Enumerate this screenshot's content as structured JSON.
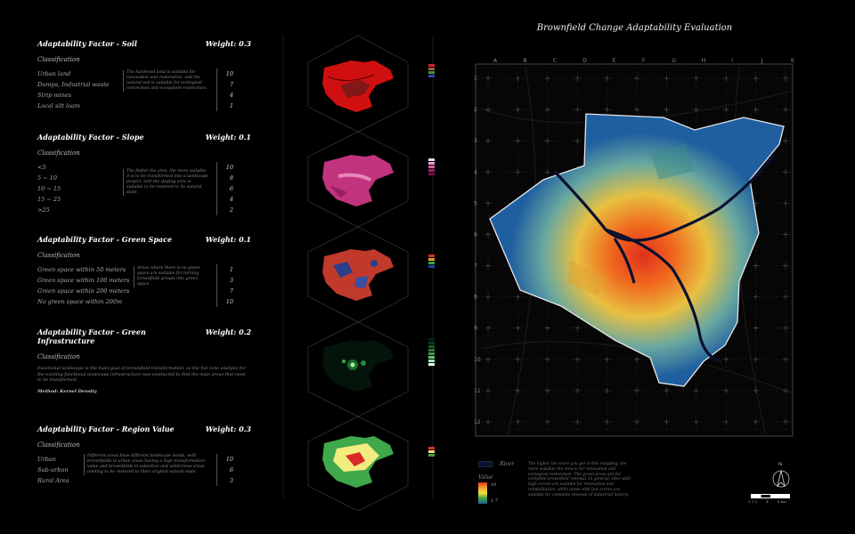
{
  "title": "Brownfield Change Adaptability Evaluation",
  "colors": {
    "background": "#000000",
    "high": "#e0301e",
    "mid": "#f0c030",
    "low": "#1f5fa0",
    "river": "#0a1030"
  },
  "factors": [
    {
      "title": "Adaptability Factor - Soil",
      "weight": "Weight: 0.3",
      "classification": "Classification",
      "categories": [
        "Urban land",
        "Dumps, Industrial waste",
        "Strip mines",
        "Local silt loam"
      ],
      "scores": [
        "10",
        "7",
        "4",
        "1"
      ],
      "description": "The hardened land is suitable for renovation and restoration, and the natural soil is suitable for ecological restoration and ecosystem restoration."
    },
    {
      "title": "Adaptability Factor - Slope",
      "weight": "Weight: 0.1",
      "classification": "Classification",
      "categories": [
        "<5",
        "5 ~ 10",
        "10 ~ 15",
        "15 ~ 25",
        ">25"
      ],
      "scores": [
        "10",
        "8",
        "6",
        "4",
        "2"
      ],
      "description": "The flatter the area, the more suitable it is to be transformed into a landscape project, and the sloping area is suitable to be restored to its natural state."
    },
    {
      "title": "Adaptability Factor - Green Space",
      "weight": "Weight: 0.1",
      "classification": "Classification",
      "categories": [
        "Green space within 50 meters",
        "Green space within 100 meters",
        "Green space within 200 meters",
        "No green space within 200m"
      ],
      "scores": [
        "1",
        "3",
        "7",
        "10"
      ],
      "description": "Areas where there is no green space are suitable for turning brownfield groups into green space."
    },
    {
      "title": "Adaptability Factor - Green Infrastructure",
      "weight": "Weight: 0.2",
      "classification": "Classification",
      "description": "Functional landscape is the main goal of brownfield transformation, so the hot zone analysis for the existing functional landscape infrastructure was conducted to find the main areas that need to be transformed.",
      "method": "Method: Kernel Density"
    },
    {
      "title": "Adaptability Factor - Region Value",
      "weight": "Weight: 0.3",
      "classification": "Classification",
      "categories": [
        "Urban",
        "Sub-urban",
        "Rural Area"
      ],
      "scores": [
        "10",
        "6",
        "3"
      ],
      "description": "Different areas have different landscape needs, with brownfields in urban areas having a high transformation value and brownfields in suburban and wilderness areas tending to be restored to their original natural state."
    }
  ],
  "grid": {
    "columns": [
      "A",
      "B",
      "C",
      "D",
      "E",
      "F",
      "G",
      "H",
      "I",
      "J",
      "K"
    ],
    "rows": [
      "1",
      "2",
      "3",
      "4",
      "5",
      "6",
      "7",
      "8",
      "9",
      "10",
      "11",
      "12"
    ]
  },
  "legend": {
    "river_label": "River",
    "value_label": "Value",
    "high_label": "10",
    "low_label": "1.7"
  },
  "map_description": "The higher the score you get in this mapping, the more suitable the area is for renovation and ecological restoration. The green areas are for complete brownfield renewal. In general, sites with high scores are suitable for renovation and rehabilitation, while areas with low scores are suitable for complete renewal of industrial history.",
  "north_label": "N",
  "scale_labels": [
    "0 1 2",
    "4",
    "8 km"
  ]
}
